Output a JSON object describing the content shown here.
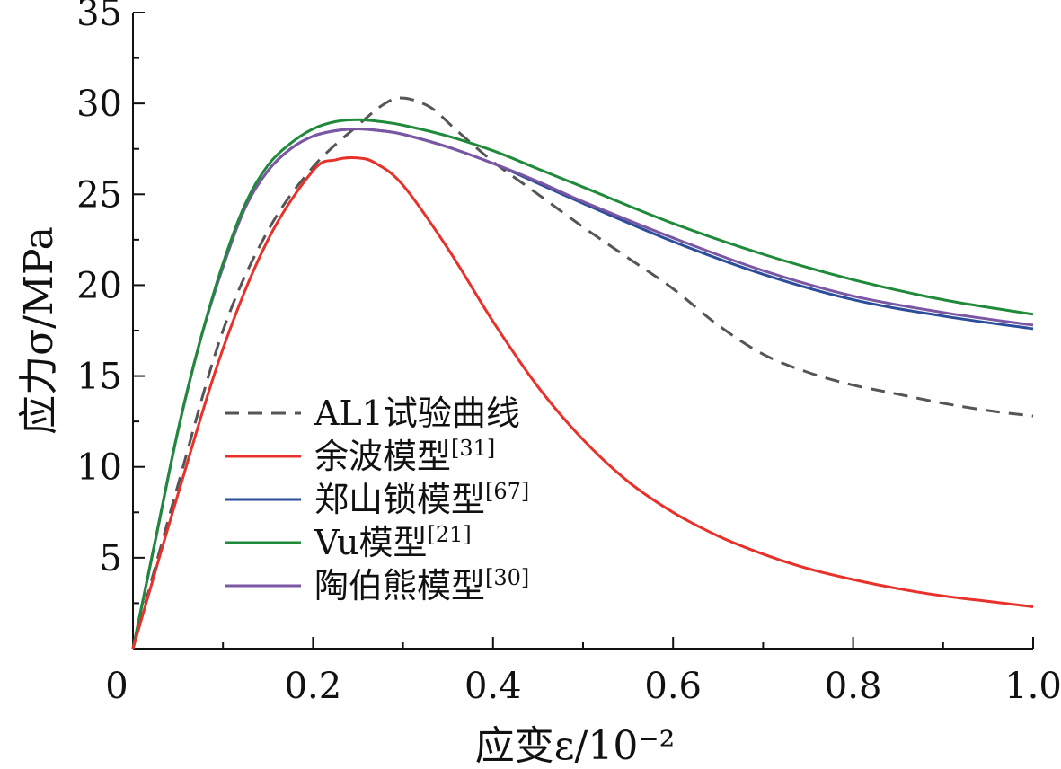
{
  "chart_data": {
    "type": "line",
    "xlabel": "应变ε/10⁻²",
    "ylabel": "应力σ/MPa",
    "xlim": [
      0,
      1.0
    ],
    "ylim": [
      0,
      35
    ],
    "x_ticks": [
      0,
      0.2,
      0.4,
      0.6,
      0.8,
      1.0
    ],
    "x_tick_labels": [
      "0",
      "0.2",
      "0.4",
      "0.6",
      "0.8",
      "1.0"
    ],
    "y_ticks": [
      5,
      10,
      15,
      20,
      25,
      30,
      35
    ],
    "y_tick_labels": [
      "5",
      "10",
      "15",
      "20",
      "25",
      "30",
      "35"
    ],
    "legend_position": "lower-left",
    "series": [
      {
        "name": "AL1试验曲线",
        "label": "AL1试验曲线",
        "ref": "",
        "color": "#555555",
        "dashed": true,
        "x": [
          0,
          0.05,
          0.1,
          0.15,
          0.2,
          0.25,
          0.28,
          0.3,
          0.33,
          0.36,
          0.4,
          0.45,
          0.5,
          0.55,
          0.6,
          0.65,
          0.7,
          0.75,
          0.8,
          0.85,
          0.9,
          0.95,
          1.0
        ],
        "y": [
          0,
          9,
          17.5,
          23,
          26.5,
          28.8,
          30.0,
          30.3,
          29.8,
          28.5,
          26.8,
          25.0,
          23.2,
          21.5,
          19.8,
          17.8,
          16.2,
          15.2,
          14.5,
          14.0,
          13.5,
          13.1,
          12.8
        ]
      },
      {
        "name": "余波模型[31]",
        "label": "余波模型",
        "ref": "[31]",
        "color": "#e8312a",
        "dashed": false,
        "x": [
          0,
          0.05,
          0.1,
          0.15,
          0.2,
          0.225,
          0.25,
          0.27,
          0.3,
          0.35,
          0.4,
          0.45,
          0.5,
          0.55,
          0.6,
          0.65,
          0.7,
          0.75,
          0.8,
          0.85,
          0.9,
          0.95,
          1.0
        ],
        "y": [
          0,
          8.5,
          16.5,
          22.5,
          26.3,
          26.9,
          27.0,
          26.7,
          25.5,
          22.0,
          18.0,
          14.4,
          11.5,
          9.2,
          7.5,
          6.2,
          5.2,
          4.4,
          3.8,
          3.3,
          2.9,
          2.6,
          2.3
        ]
      },
      {
        "name": "郑山锁模型[67]",
        "label": "郑山锁模型",
        "ref": "[67]",
        "color": "#2b4e9b",
        "dashed": false,
        "x": [
          0,
          0.025,
          0.05,
          0.075,
          0.1,
          0.125,
          0.15,
          0.175,
          0.2,
          0.225,
          0.25,
          0.275,
          0.3,
          0.35,
          0.4,
          0.45,
          0.5,
          0.6,
          0.7,
          0.8,
          0.9,
          1.0
        ],
        "y": [
          0,
          6,
          12,
          17,
          21,
          24.3,
          26.3,
          27.5,
          28.2,
          28.5,
          28.6,
          28.5,
          28.3,
          27.6,
          26.7,
          25.6,
          24.5,
          22.4,
          20.6,
          19.2,
          18.3,
          17.6
        ]
      },
      {
        "name": "Vu模型[21]",
        "label": "Vu模型",
        "ref": "[21]",
        "color": "#1f8a3a",
        "dashed": false,
        "x": [
          0,
          0.025,
          0.05,
          0.075,
          0.1,
          0.125,
          0.15,
          0.175,
          0.2,
          0.225,
          0.25,
          0.275,
          0.3,
          0.35,
          0.4,
          0.45,
          0.5,
          0.6,
          0.7,
          0.8,
          0.9,
          1.0
        ],
        "y": [
          0,
          6,
          12,
          17,
          21.2,
          24.5,
          26.6,
          27.8,
          28.6,
          29.0,
          29.1,
          29.0,
          28.8,
          28.2,
          27.4,
          26.4,
          25.4,
          23.4,
          21.7,
          20.3,
          19.2,
          18.4
        ]
      },
      {
        "name": "陶伯熊模型[30]",
        "label": "陶伯熊模型",
        "ref": "[30]",
        "color": "#7b57a3",
        "dashed": false,
        "x": [
          0,
          0.025,
          0.05,
          0.075,
          0.1,
          0.125,
          0.15,
          0.175,
          0.2,
          0.225,
          0.25,
          0.275,
          0.3,
          0.35,
          0.4,
          0.45,
          0.5,
          0.6,
          0.7,
          0.8,
          0.9,
          1.0
        ],
        "y": [
          0,
          6,
          12,
          17,
          21,
          24.3,
          26.3,
          27.5,
          28.2,
          28.5,
          28.6,
          28.5,
          28.3,
          27.6,
          26.7,
          25.7,
          24.6,
          22.6,
          20.8,
          19.4,
          18.5,
          17.8
        ]
      }
    ]
  }
}
